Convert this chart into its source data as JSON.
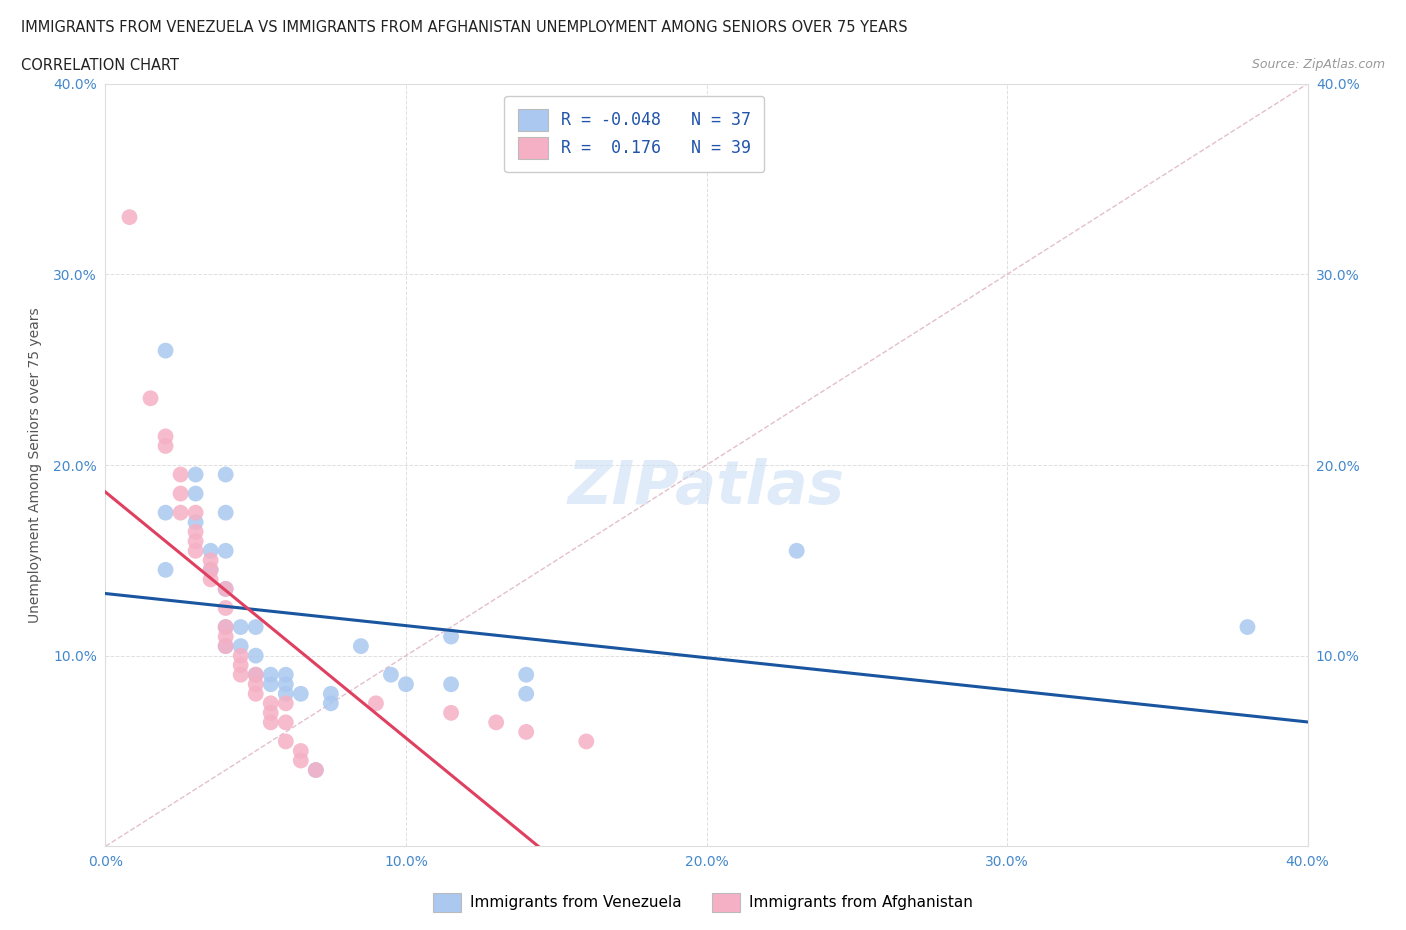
{
  "title_line1": "IMMIGRANTS FROM VENEZUELA VS IMMIGRANTS FROM AFGHANISTAN UNEMPLOYMENT AMONG SENIORS OVER 75 YEARS",
  "title_line2": "CORRELATION CHART",
  "source_text": "Source: ZipAtlas.com",
  "ylabel": "Unemployment Among Seniors over 75 years",
  "xlim": [
    0.0,
    0.4
  ],
  "ylim": [
    0.0,
    0.4
  ],
  "xticks": [
    0.0,
    0.1,
    0.2,
    0.3,
    0.4
  ],
  "yticks": [
    0.0,
    0.1,
    0.2,
    0.3,
    0.4
  ],
  "grid_color": "#e0e0e0",
  "watermark_text": "ZIPatlas",
  "legend_R_venezuela": "-0.048",
  "legend_N_venezuela": "37",
  "legend_R_afghanistan": "0.176",
  "legend_N_afghanistan": "39",
  "venezuela_color": "#aac8f0",
  "afghanistan_color": "#f5b0c5",
  "venezuela_trend_color": "#1a55a0",
  "afghanistan_trend_color": "#e04060",
  "diag_color": "#e0b8c8",
  "venezuela_points": [
    [
      0.02,
      0.26
    ],
    [
      0.02,
      0.175
    ],
    [
      0.02,
      0.145
    ],
    [
      0.03,
      0.195
    ],
    [
      0.03,
      0.185
    ],
    [
      0.03,
      0.17
    ],
    [
      0.035,
      0.155
    ],
    [
      0.035,
      0.145
    ],
    [
      0.04,
      0.195
    ],
    [
      0.04,
      0.175
    ],
    [
      0.04,
      0.155
    ],
    [
      0.04,
      0.135
    ],
    [
      0.04,
      0.115
    ],
    [
      0.04,
      0.105
    ],
    [
      0.045,
      0.115
    ],
    [
      0.045,
      0.105
    ],
    [
      0.05,
      0.115
    ],
    [
      0.05,
      0.1
    ],
    [
      0.05,
      0.09
    ],
    [
      0.055,
      0.09
    ],
    [
      0.055,
      0.085
    ],
    [
      0.06,
      0.09
    ],
    [
      0.06,
      0.085
    ],
    [
      0.06,
      0.08
    ],
    [
      0.065,
      0.08
    ],
    [
      0.07,
      0.04
    ],
    [
      0.075,
      0.08
    ],
    [
      0.075,
      0.075
    ],
    [
      0.085,
      0.105
    ],
    [
      0.095,
      0.09
    ],
    [
      0.1,
      0.085
    ],
    [
      0.115,
      0.11
    ],
    [
      0.115,
      0.085
    ],
    [
      0.14,
      0.09
    ],
    [
      0.14,
      0.08
    ],
    [
      0.23,
      0.155
    ],
    [
      0.38,
      0.115
    ]
  ],
  "afghanistan_points": [
    [
      0.008,
      0.33
    ],
    [
      0.015,
      0.235
    ],
    [
      0.02,
      0.215
    ],
    [
      0.02,
      0.21
    ],
    [
      0.025,
      0.195
    ],
    [
      0.025,
      0.185
    ],
    [
      0.025,
      0.175
    ],
    [
      0.03,
      0.175
    ],
    [
      0.03,
      0.165
    ],
    [
      0.03,
      0.16
    ],
    [
      0.03,
      0.155
    ],
    [
      0.035,
      0.15
    ],
    [
      0.035,
      0.145
    ],
    [
      0.035,
      0.14
    ],
    [
      0.04,
      0.135
    ],
    [
      0.04,
      0.125
    ],
    [
      0.04,
      0.115
    ],
    [
      0.04,
      0.11
    ],
    [
      0.04,
      0.105
    ],
    [
      0.045,
      0.1
    ],
    [
      0.045,
      0.095
    ],
    [
      0.045,
      0.09
    ],
    [
      0.05,
      0.09
    ],
    [
      0.05,
      0.085
    ],
    [
      0.05,
      0.08
    ],
    [
      0.055,
      0.075
    ],
    [
      0.055,
      0.07
    ],
    [
      0.055,
      0.065
    ],
    [
      0.06,
      0.075
    ],
    [
      0.06,
      0.065
    ],
    [
      0.06,
      0.055
    ],
    [
      0.065,
      0.05
    ],
    [
      0.065,
      0.045
    ],
    [
      0.07,
      0.04
    ],
    [
      0.09,
      0.075
    ],
    [
      0.115,
      0.07
    ],
    [
      0.13,
      0.065
    ],
    [
      0.14,
      0.06
    ],
    [
      0.16,
      0.055
    ]
  ]
}
